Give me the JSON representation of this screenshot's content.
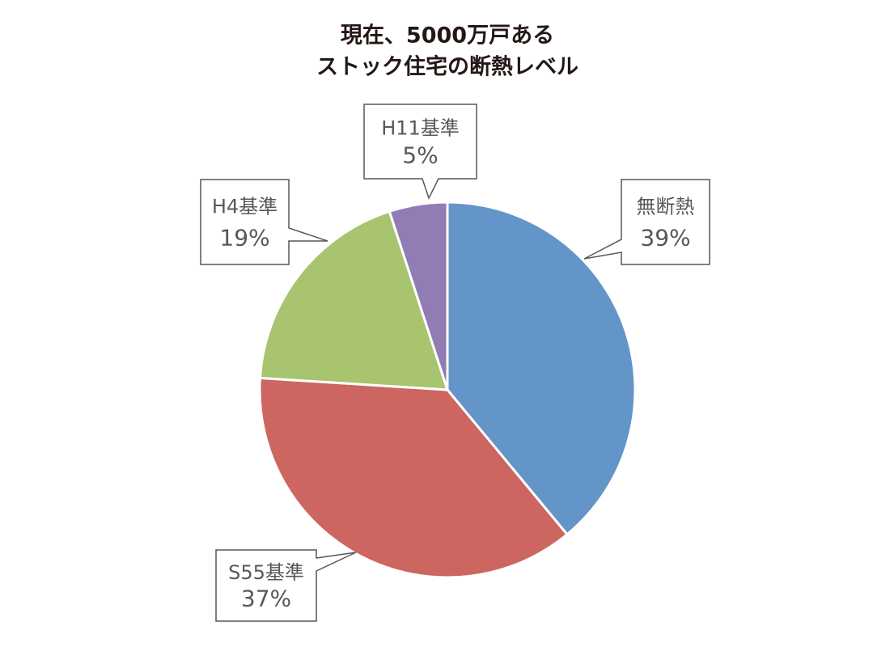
{
  "chart_data": {
    "type": "pie",
    "title": [
      "現在、5000万戸ある",
      "ストック住宅の断熱レベル"
    ],
    "categories": [
      "無断熱",
      "S55基準",
      "H4基準",
      "H11基準"
    ],
    "values": [
      39,
      37,
      19,
      5
    ],
    "value_labels": [
      "39%",
      "37%",
      "19%",
      "5%"
    ],
    "colors": [
      "#6495c9",
      "#cd6660",
      "#a9c46f",
      "#917cb4"
    ]
  }
}
